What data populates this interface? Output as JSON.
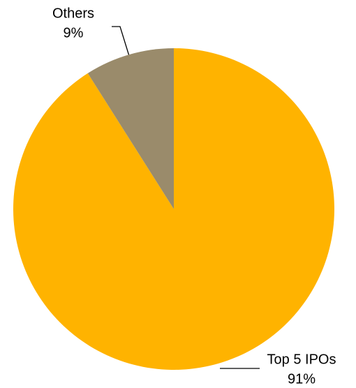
{
  "chart_data": {
    "type": "pie",
    "categories": [
      "Top 5 IPOs",
      "Others"
    ],
    "values": [
      91,
      9
    ],
    "value_labels": [
      "91%",
      "9%"
    ],
    "colors": [
      "#ffb300",
      "#9a8b6b"
    ]
  }
}
